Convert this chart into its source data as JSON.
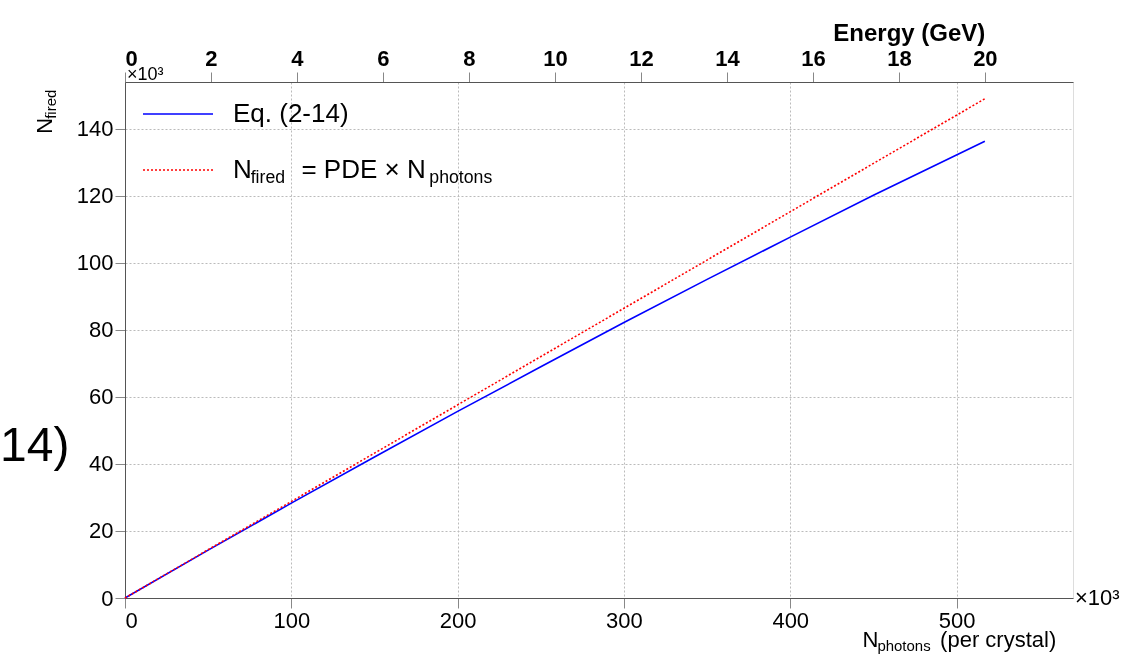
{
  "chart_data": {
    "type": "line",
    "xlabel": "N$_{photons}$ (per crystal)",
    "ylabel": "N$_{fired}$",
    "x2label": "Energy (GeV)",
    "xlim": [
      0,
      570
    ],
    "xticks": [
      0,
      100,
      200,
      300,
      400,
      500
    ],
    "ylim": [
      0,
      154
    ],
    "yticks": [
      0,
      20,
      40,
      60,
      80,
      100,
      120,
      140
    ],
    "x2lim": [
      0,
      22.05
    ],
    "x2ticks": [
      0,
      2,
      4,
      6,
      8,
      10,
      12,
      14,
      16,
      18,
      20
    ],
    "grid": true,
    "legend": "top left",
    "marker": "none",
    "series": [
      {
        "name": "Eq. (2-14)",
        "color": "#0000ff",
        "line_style": "solid",
        "x": [
          0,
          50,
          100,
          150,
          200,
          250,
          300,
          350,
          400,
          450,
          517
        ],
        "values": [
          0,
          14.3,
          28.3,
          42.1,
          55.7,
          69.0,
          82.2,
          95.1,
          107.7,
          120.2,
          136.3
        ]
      },
      {
        "name": "N$_{fired}$ = PDE × N$_{photons}$",
        "color": "#ff0000",
        "line_style": "dotted",
        "x": [
          0,
          517
        ],
        "values": [
          0,
          149
        ]
      }
    ],
    "annotations": [
      "×10³",
      "×10³",
      "14)"
    ]
  }
}
